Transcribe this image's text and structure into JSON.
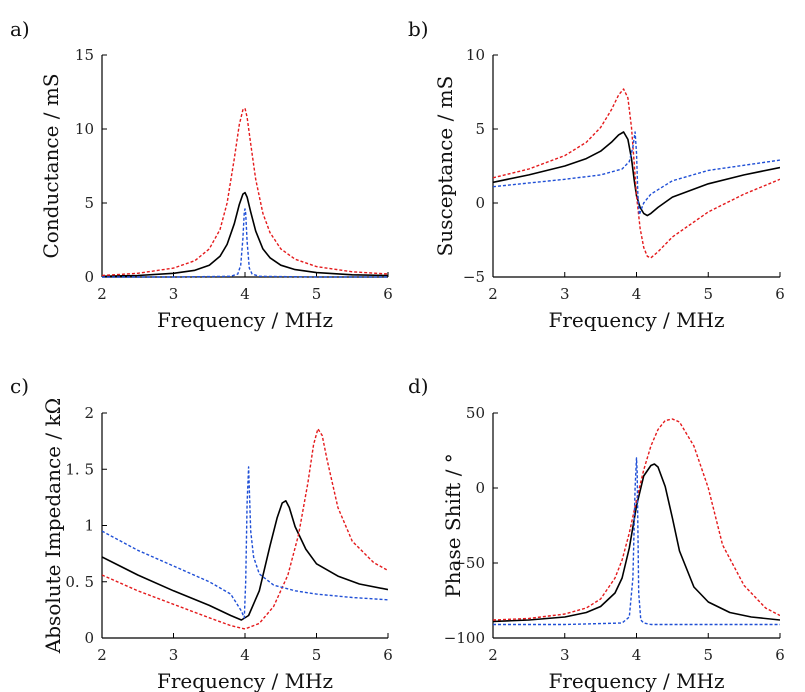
{
  "colors": {
    "measured": "#000000",
    "model_red": "#e41a1c",
    "model_blue": "#1f4fd6",
    "axis": "#000000"
  },
  "chart_data": [
    {
      "type": "line",
      "panel_label": "a)",
      "xlabel": "Frequency / MHz",
      "ylabel": "Conductance / mS",
      "xlim": [
        2,
        6
      ],
      "ylim": [
        0,
        15
      ],
      "xticks": [
        2,
        3,
        4,
        5,
        6
      ],
      "yticks": [
        0,
        5,
        10,
        15
      ],
      "xtick_labels": [
        "2",
        "3",
        "4",
        "5",
        "6"
      ],
      "ytick_labels": [
        "0",
        "5",
        "10",
        "15"
      ],
      "grid": false,
      "series": [
        {
          "color": "black",
          "style": "solid",
          "x": [
            2.0,
            2.5,
            3.0,
            3.3,
            3.5,
            3.65,
            3.75,
            3.85,
            3.92,
            3.97,
            4.0,
            4.03,
            4.08,
            4.15,
            4.25,
            4.35,
            4.5,
            4.7,
            5.0,
            5.5,
            6.0
          ],
          "y": [
            0.05,
            0.1,
            0.25,
            0.45,
            0.8,
            1.4,
            2.2,
            3.6,
            4.9,
            5.6,
            5.7,
            5.4,
            4.4,
            3.1,
            1.9,
            1.3,
            0.8,
            0.5,
            0.3,
            0.15,
            0.1
          ]
        },
        {
          "color": "red",
          "style": "dashed",
          "x": [
            2.0,
            2.5,
            3.0,
            3.3,
            3.5,
            3.65,
            3.75,
            3.85,
            3.92,
            3.97,
            4.0,
            4.03,
            4.08,
            4.15,
            4.25,
            4.35,
            4.5,
            4.7,
            5.0,
            5.5,
            6.0
          ],
          "y": [
            0.1,
            0.25,
            0.6,
            1.1,
            1.9,
            3.2,
            5.0,
            8.0,
            10.3,
            11.3,
            11.4,
            10.8,
            9.0,
            6.6,
            4.3,
            3.0,
            1.9,
            1.2,
            0.7,
            0.35,
            0.2
          ]
        },
        {
          "color": "blue",
          "style": "dashed",
          "x": [
            2.0,
            3.0,
            3.8,
            3.9,
            3.94,
            3.97,
            3.99,
            4.0,
            4.01,
            4.03,
            4.06,
            4.1,
            4.2,
            5.0,
            6.0
          ],
          "y": [
            0.0,
            0.0,
            0.05,
            0.2,
            0.8,
            2.6,
            4.4,
            4.6,
            4.3,
            2.4,
            0.6,
            0.2,
            0.05,
            0.0,
            0.0
          ]
        }
      ]
    },
    {
      "type": "line",
      "panel_label": "b)",
      "xlabel": "Frequency / MHz",
      "ylabel": "Susceptance / mS",
      "xlim": [
        2,
        6
      ],
      "ylim": [
        -5,
        10
      ],
      "xticks": [
        2,
        3,
        4,
        5,
        6
      ],
      "yticks": [
        -5,
        0,
        5,
        10
      ],
      "xtick_labels": [
        "2",
        "3",
        "4",
        "5",
        "6"
      ],
      "ytick_labels": [
        "−5",
        "0",
        "5",
        "10"
      ],
      "grid": false,
      "series": [
        {
          "color": "black",
          "style": "solid",
          "x": [
            2.0,
            2.5,
            3.0,
            3.3,
            3.5,
            3.65,
            3.75,
            3.82,
            3.88,
            3.93,
            3.97,
            4.0,
            4.05,
            4.1,
            4.15,
            4.2,
            4.3,
            4.5,
            5.0,
            5.5,
            6.0
          ],
          "y": [
            1.4,
            1.9,
            2.5,
            3.0,
            3.5,
            4.1,
            4.6,
            4.8,
            4.3,
            3.0,
            1.5,
            0.5,
            -0.3,
            -0.7,
            -0.85,
            -0.7,
            -0.3,
            0.4,
            1.3,
            1.9,
            2.4
          ]
        },
        {
          "color": "red",
          "style": "dashed",
          "x": [
            2.0,
            2.5,
            3.0,
            3.3,
            3.5,
            3.65,
            3.75,
            3.82,
            3.88,
            3.93,
            3.97,
            4.0,
            4.05,
            4.1,
            4.15,
            4.2,
            4.3,
            4.5,
            5.0,
            5.5,
            6.0
          ],
          "y": [
            1.7,
            2.3,
            3.2,
            4.1,
            5.1,
            6.3,
            7.3,
            7.7,
            7.1,
            5.1,
            2.6,
            0.5,
            -1.7,
            -3.0,
            -3.6,
            -3.7,
            -3.3,
            -2.3,
            -0.6,
            0.6,
            1.6
          ]
        },
        {
          "color": "blue",
          "style": "dashed",
          "x": [
            2.0,
            3.0,
            3.5,
            3.8,
            3.9,
            3.95,
            3.98,
            4.0,
            4.02,
            4.04,
            4.06,
            4.1,
            4.2,
            4.5,
            5.0,
            6.0
          ],
          "y": [
            1.1,
            1.6,
            1.9,
            2.3,
            2.8,
            3.8,
            4.8,
            3.4,
            0.5,
            -0.8,
            -0.5,
            0.0,
            0.6,
            1.5,
            2.2,
            2.9
          ]
        }
      ]
    },
    {
      "type": "line",
      "panel_label": "c)",
      "xlabel": "Frequency / MHz",
      "ylabel": "Absolute Impedance / kΩ",
      "xlim": [
        2,
        6
      ],
      "ylim": [
        0,
        2
      ],
      "xticks": [
        2,
        3,
        4,
        5,
        6
      ],
      "yticks": [
        0,
        0.5,
        1,
        1.5,
        2
      ],
      "xtick_labels": [
        "2",
        "3",
        "4",
        "5",
        "6"
      ],
      "ytick_labels": [
        "0",
        "0. 5",
        "1",
        "1. 5",
        "2"
      ],
      "grid": false,
      "series": [
        {
          "color": "black",
          "style": "solid",
          "x": [
            2.0,
            2.5,
            3.0,
            3.5,
            3.8,
            3.95,
            4.05,
            4.2,
            4.35,
            4.45,
            4.52,
            4.57,
            4.62,
            4.7,
            4.85,
            5.0,
            5.3,
            5.6,
            6.0
          ],
          "y": [
            0.72,
            0.56,
            0.42,
            0.29,
            0.2,
            0.16,
            0.2,
            0.42,
            0.82,
            1.07,
            1.2,
            1.22,
            1.16,
            0.99,
            0.79,
            0.66,
            0.55,
            0.48,
            0.43
          ]
        },
        {
          "color": "red",
          "style": "dashed",
          "x": [
            2.0,
            2.5,
            3.0,
            3.5,
            3.8,
            4.0,
            4.2,
            4.4,
            4.6,
            4.75,
            4.88,
            4.96,
            5.02,
            5.08,
            5.15,
            5.3,
            5.5,
            5.8,
            6.0
          ],
          "y": [
            0.56,
            0.42,
            0.3,
            0.18,
            0.11,
            0.08,
            0.13,
            0.28,
            0.56,
            0.92,
            1.38,
            1.72,
            1.86,
            1.8,
            1.58,
            1.16,
            0.86,
            0.67,
            0.6
          ]
        },
        {
          "color": "blue",
          "style": "dashed",
          "x": [
            2.0,
            2.5,
            3.0,
            3.5,
            3.8,
            3.95,
            3.99,
            4.01,
            4.03,
            4.05,
            4.08,
            4.12,
            4.2,
            4.4,
            4.7,
            5.0,
            5.5,
            6.0
          ],
          "y": [
            0.95,
            0.78,
            0.64,
            0.5,
            0.39,
            0.24,
            0.18,
            0.5,
            1.2,
            1.52,
            0.95,
            0.72,
            0.57,
            0.47,
            0.42,
            0.39,
            0.36,
            0.34
          ]
        }
      ]
    },
    {
      "type": "line",
      "panel_label": "d)",
      "xlabel": "Frequency / MHz",
      "ylabel": "Phase Shift / °",
      "xlim": [
        2,
        6
      ],
      "ylim": [
        -100,
        50
      ],
      "xticks": [
        2,
        3,
        4,
        5,
        6
      ],
      "yticks": [
        -100,
        -50,
        0,
        50
      ],
      "xtick_labels": [
        "2",
        "3",
        "4",
        "5",
        "6"
      ],
      "ytick_labels": [
        "−100",
        "−50",
        "0",
        "50"
      ],
      "grid": false,
      "series": [
        {
          "color": "black",
          "style": "solid",
          "x": [
            2.0,
            2.5,
            3.0,
            3.3,
            3.5,
            3.7,
            3.8,
            3.9,
            4.0,
            4.1,
            4.2,
            4.25,
            4.3,
            4.4,
            4.5,
            4.6,
            4.8,
            5.0,
            5.3,
            5.6,
            6.0
          ],
          "y": [
            -89,
            -88,
            -86,
            -83,
            -79,
            -70,
            -60,
            -40,
            -12,
            8,
            15,
            16,
            14,
            1,
            -20,
            -42,
            -66,
            -76,
            -83,
            -86,
            -88
          ]
        },
        {
          "color": "red",
          "style": "dashed",
          "x": [
            2.0,
            2.5,
            3.0,
            3.3,
            3.5,
            3.7,
            3.8,
            3.9,
            4.0,
            4.1,
            4.2,
            4.3,
            4.4,
            4.5,
            4.6,
            4.8,
            5.0,
            5.2,
            5.5,
            5.8,
            6.0
          ],
          "y": [
            -88,
            -87,
            -84,
            -80,
            -74,
            -60,
            -48,
            -30,
            -8,
            12,
            28,
            39,
            45,
            46,
            44,
            28,
            0,
            -38,
            -65,
            -80,
            -85
          ]
        },
        {
          "color": "blue",
          "style": "dashed",
          "x": [
            2.0,
            3.0,
            3.8,
            3.9,
            3.95,
            3.98,
            4.0,
            4.01,
            4.03,
            4.06,
            4.1,
            4.2,
            6.0
          ],
          "y": [
            -91,
            -91,
            -90,
            -86,
            -60,
            0,
            20,
            10,
            -70,
            -88,
            -90,
            -91,
            -91
          ]
        }
      ]
    }
  ]
}
